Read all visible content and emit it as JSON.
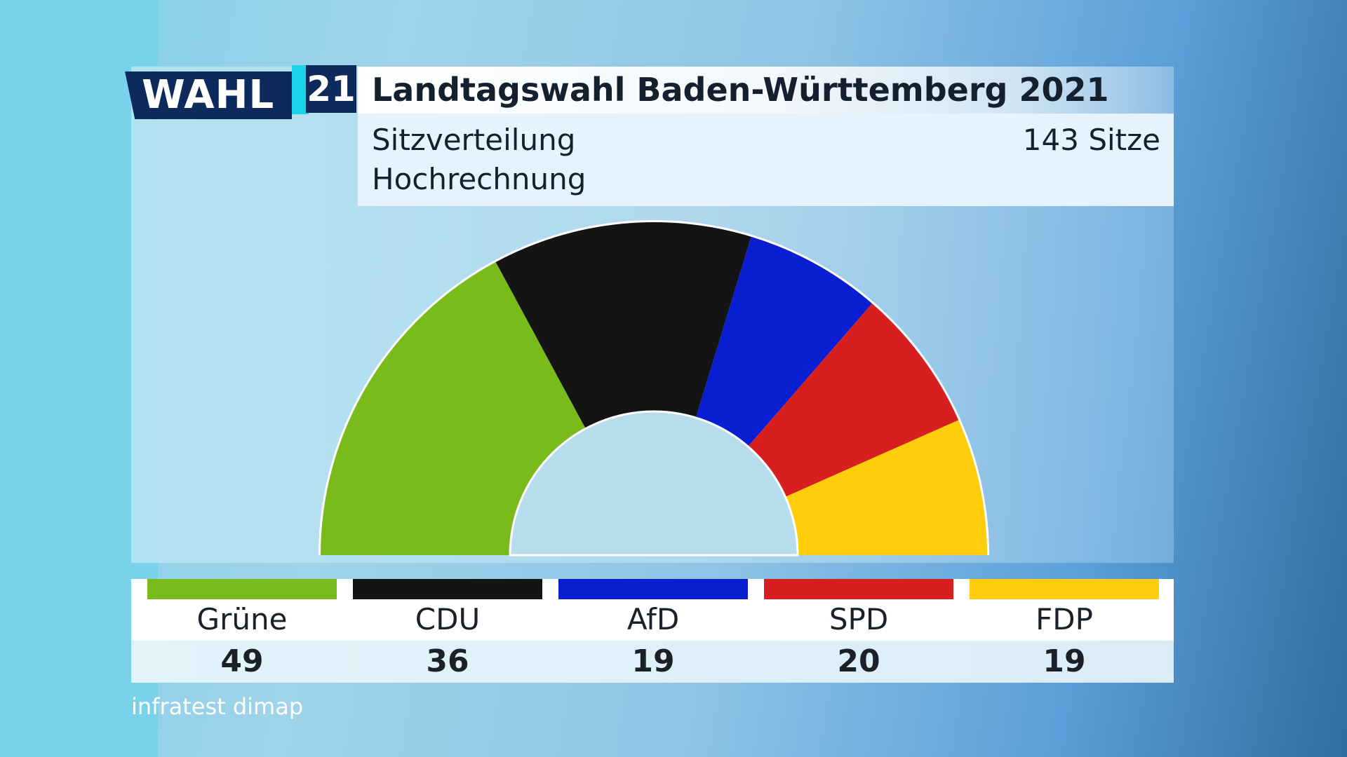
{
  "logo": {
    "wahl": "WAHL",
    "year": "21"
  },
  "header": {
    "title": "Landtagswahl Baden-Württemberg 2021",
    "subtitle": "Sitzverteilung",
    "subtitle2": "Hochrechnung",
    "total_seats_label": "143 Sitze"
  },
  "source": "infratest dimap",
  "chart_data": {
    "type": "pie",
    "shape": "semicircle",
    "total": 143,
    "categories": [
      "Grüne",
      "CDU",
      "AfD",
      "SPD",
      "FDP"
    ],
    "values": [
      49,
      36,
      19,
      20,
      19
    ],
    "colors": [
      "#79bb1b",
      "#141414",
      "#0a1ed1",
      "#d71f20",
      "#ffcd0a"
    ]
  }
}
